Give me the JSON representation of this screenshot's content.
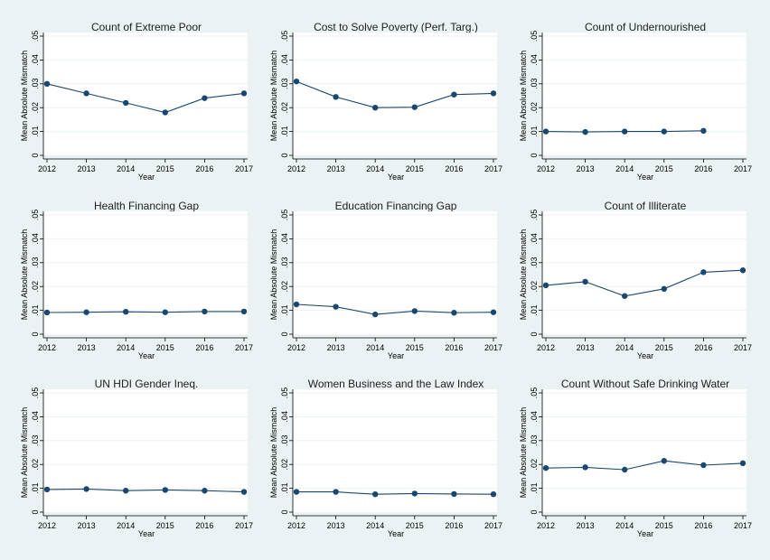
{
  "style": {
    "background": "#eaf2f3",
    "plot_background": "#ffffff",
    "series_color": "#1a476f",
    "grid": true
  },
  "chart_data": [
    {
      "type": "line",
      "title": "Count of Extreme Poor",
      "xlabel": "Year",
      "ylabel": "Mean Absolute Mismatch",
      "x": [
        2012,
        2013,
        2014,
        2015,
        2016,
        2017
      ],
      "y": [
        0.03,
        0.026,
        0.022,
        0.018,
        0.024,
        0.026
      ],
      "xticks": [
        "2012",
        "2013",
        "2014",
        "2015",
        "2016",
        "2017"
      ],
      "yticks": [
        "0",
        ".01",
        ".02",
        ".03",
        ".04",
        ".05"
      ],
      "ylim": [
        0,
        0.05
      ],
      "xlim": [
        2012,
        2017
      ]
    },
    {
      "type": "line",
      "title": "Cost to Solve Poverty (Perf. Targ.)",
      "xlabel": "Year",
      "ylabel": "Mean Absolute Mismatch",
      "x": [
        2012,
        2013,
        2014,
        2015,
        2016,
        2017
      ],
      "y": [
        0.031,
        0.0245,
        0.02,
        0.0202,
        0.0255,
        0.026
      ],
      "xticks": [
        "2012",
        "2013",
        "2014",
        "2015",
        "2016",
        "2017"
      ],
      "yticks": [
        "0",
        ".01",
        ".02",
        ".03",
        ".04",
        ".05"
      ],
      "ylim": [
        0,
        0.05
      ],
      "xlim": [
        2012,
        2017
      ]
    },
    {
      "type": "line",
      "title": "Count of Undernourished",
      "xlabel": "Year",
      "ylabel": "Mean Absolute Mismatch",
      "x": [
        2012,
        2013,
        2014,
        2015,
        2016
      ],
      "y": [
        0.01,
        0.0098,
        0.01,
        0.01,
        0.0103
      ],
      "xticks": [
        "2012",
        "2013",
        "2014",
        "2015",
        "2016",
        "2017"
      ],
      "yticks": [
        "0",
        ".01",
        ".02",
        ".03",
        ".04",
        ".05"
      ],
      "ylim": [
        0,
        0.05
      ],
      "xlim": [
        2012,
        2017
      ]
    },
    {
      "type": "line",
      "title": "Health Financing Gap",
      "xlabel": "Year",
      "ylabel": "Mean Absolute Mismatch",
      "x": [
        2012,
        2013,
        2014,
        2015,
        2016,
        2017
      ],
      "y": [
        0.0091,
        0.0092,
        0.0094,
        0.0092,
        0.0095,
        0.0095
      ],
      "xticks": [
        "2012",
        "2013",
        "2014",
        "2015",
        "2016",
        "2017"
      ],
      "yticks": [
        "0",
        ".01",
        ".02",
        ".03",
        ".04",
        ".05"
      ],
      "ylim": [
        0,
        0.05
      ],
      "xlim": [
        2012,
        2017
      ]
    },
    {
      "type": "line",
      "title": "Education Financing Gap",
      "xlabel": "Year",
      "ylabel": "Mean Absolute Mismatch",
      "x": [
        2012,
        2013,
        2014,
        2015,
        2016,
        2017
      ],
      "y": [
        0.0125,
        0.0115,
        0.0083,
        0.0097,
        0.009,
        0.0092
      ],
      "xticks": [
        "2012",
        "2013",
        "2014",
        "2015",
        "2016",
        "2017"
      ],
      "yticks": [
        "0",
        ".01",
        ".02",
        ".03",
        ".04",
        ".05"
      ],
      "ylim": [
        0,
        0.05
      ],
      "xlim": [
        2012,
        2017
      ]
    },
    {
      "type": "line",
      "title": "Count of Illiterate",
      "xlabel": "Year",
      "ylabel": "Mean Absolute Mismatch",
      "x": [
        2012,
        2013,
        2014,
        2015,
        2016,
        2017
      ],
      "y": [
        0.0205,
        0.022,
        0.016,
        0.019,
        0.026,
        0.0268
      ],
      "xticks": [
        "2012",
        "2013",
        "2014",
        "2015",
        "2016",
        "2017"
      ],
      "yticks": [
        "0",
        ".01",
        ".02",
        ".03",
        ".04",
        ".05"
      ],
      "ylim": [
        0,
        0.05
      ],
      "xlim": [
        2012,
        2017
      ]
    },
    {
      "type": "line",
      "title": "UN HDI Gender Ineq.",
      "xlabel": "Year",
      "ylabel": "Mean Absolute Mismatch",
      "x": [
        2012,
        2013,
        2014,
        2015,
        2016,
        2017
      ],
      "y": [
        0.0095,
        0.0097,
        0.009,
        0.0093,
        0.009,
        0.0085
      ],
      "xticks": [
        "2012",
        "2013",
        "2014",
        "2015",
        "2016",
        "2017"
      ],
      "yticks": [
        "0",
        ".01",
        ".02",
        ".03",
        ".04",
        ".05"
      ],
      "ylim": [
        0,
        0.05
      ],
      "xlim": [
        2012,
        2017
      ]
    },
    {
      "type": "line",
      "title": "Women Business and the Law Index",
      "xlabel": "Year",
      "ylabel": "Mean Absolute Mismatch",
      "x": [
        2012,
        2013,
        2014,
        2015,
        2016,
        2017
      ],
      "y": [
        0.0085,
        0.0085,
        0.0075,
        0.0078,
        0.0076,
        0.0075
      ],
      "xticks": [
        "2012",
        "2013",
        "2014",
        "2015",
        "2016",
        "2017"
      ],
      "yticks": [
        "0",
        ".01",
        ".02",
        ".03",
        ".04",
        ".05"
      ],
      "ylim": [
        0,
        0.05
      ],
      "xlim": [
        2012,
        2017
      ]
    },
    {
      "type": "line",
      "title": "Count Without Safe Drinking Water",
      "xlabel": "Year",
      "ylabel": "Mean Absolute Mismatch",
      "x": [
        2012,
        2013,
        2014,
        2015,
        2016,
        2017
      ],
      "y": [
        0.0185,
        0.0188,
        0.0178,
        0.0215,
        0.0197,
        0.0205
      ],
      "xticks": [
        "2012",
        "2013",
        "2014",
        "2015",
        "2016",
        "2017"
      ],
      "yticks": [
        "0",
        ".01",
        ".02",
        ".03",
        ".04",
        ".05"
      ],
      "ylim": [
        0,
        0.05
      ],
      "xlim": [
        2012,
        2017
      ]
    }
  ]
}
